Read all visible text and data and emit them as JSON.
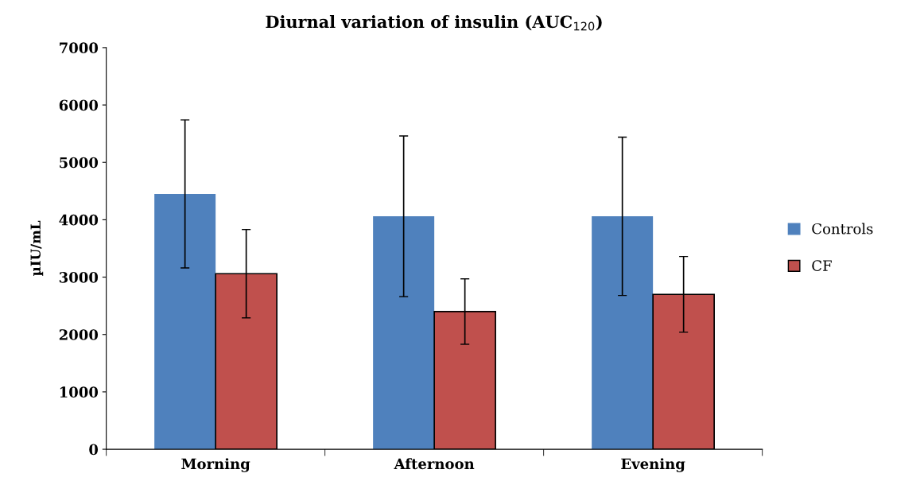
{
  "chart_data": {
    "type": "bar",
    "title": "Diurnal variation of insulin (AUC$_{120}$)",
    "ylabel": "µIU/mL",
    "categories": [
      "Morning",
      "Afternoon",
      "Evening"
    ],
    "series": [
      {
        "name": "Controls",
        "color": "#4f81bd",
        "values": [
          4450,
          4060,
          4060
        ],
        "errors": [
          1290,
          1400,
          1380
        ]
      },
      {
        "name": "CF",
        "color": "#c0504d",
        "values": [
          3060,
          2400,
          2700
        ],
        "errors": [
          770,
          570,
          660
        ]
      }
    ],
    "ylim": [
      0,
      7000
    ],
    "yticks": [
      0,
      1000,
      2000,
      3000,
      4000,
      5000,
      6000,
      7000
    ],
    "grid": false,
    "legend": "right"
  }
}
